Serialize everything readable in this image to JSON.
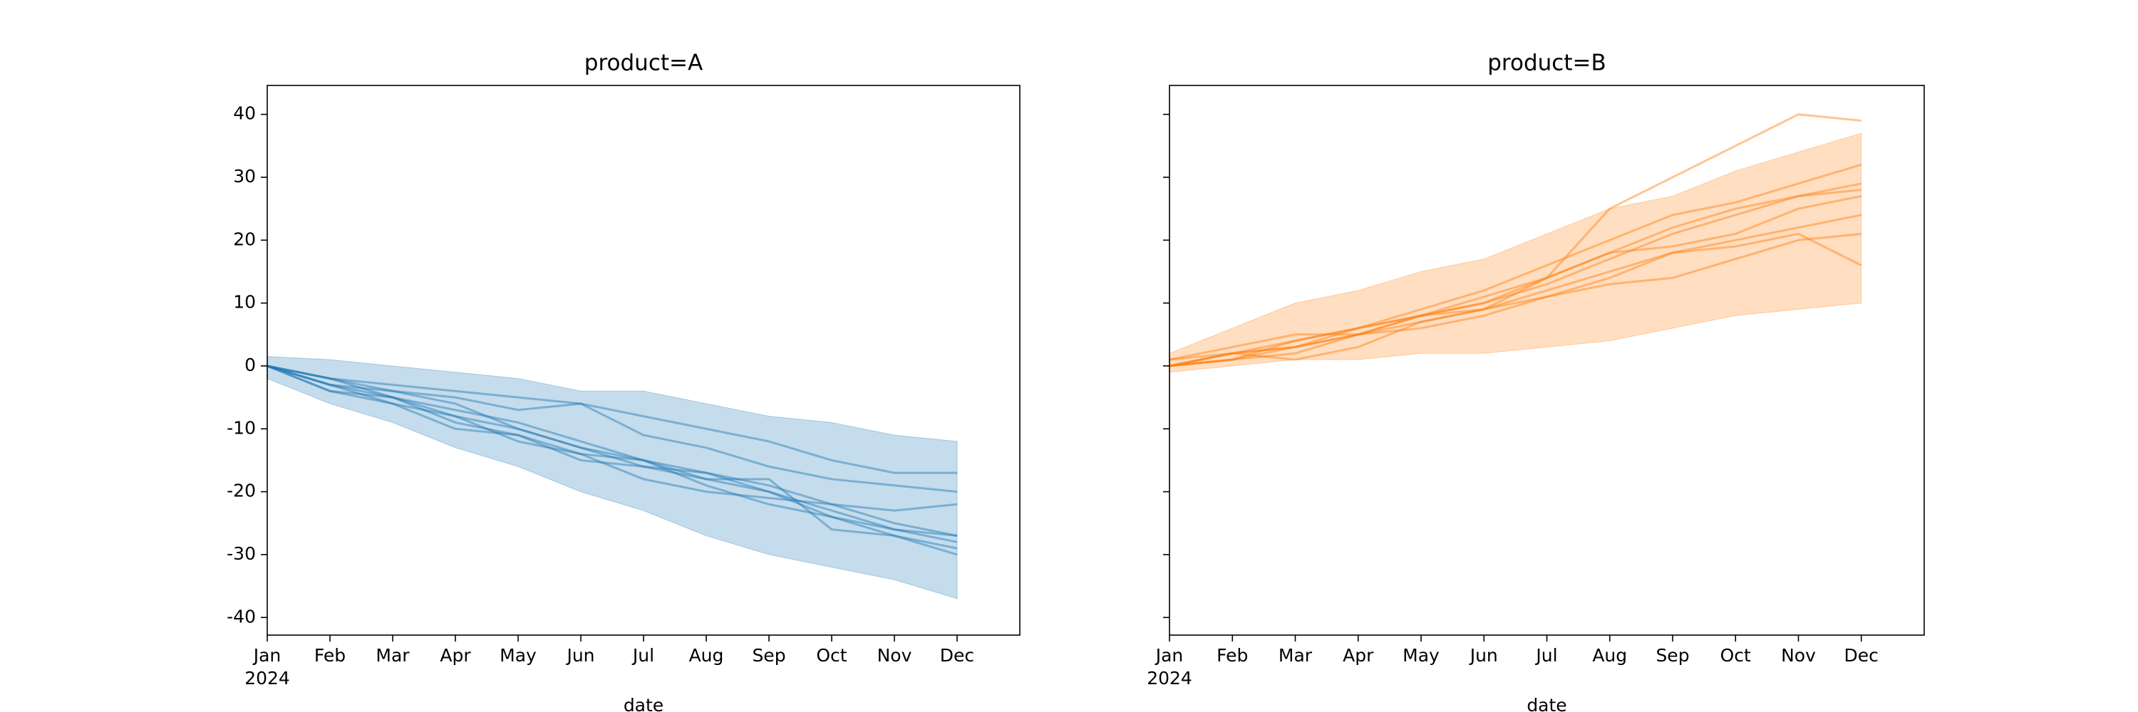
{
  "chart_data": [
    {
      "type": "line",
      "title": "product=A",
      "xlabel": "date",
      "year_label": "2024",
      "x": [
        "2024-01",
        "2024-02",
        "2024-03",
        "2024-04",
        "2024-05",
        "2024-06",
        "2024-07",
        "2024-08",
        "2024-09",
        "2024-10",
        "2024-11",
        "2024-12"
      ],
      "xlim": [
        "2024-01",
        "2025-01"
      ],
      "xticks": [
        {
          "value": "2024-01",
          "label": "Jan"
        },
        {
          "value": "2024-02",
          "label": "Feb"
        },
        {
          "value": "2024-03",
          "label": "Mar"
        },
        {
          "value": "2024-04",
          "label": "Apr"
        },
        {
          "value": "2024-05",
          "label": "May"
        },
        {
          "value": "2024-06",
          "label": "Jun"
        },
        {
          "value": "2024-07",
          "label": "Jul"
        },
        {
          "value": "2024-08",
          "label": "Aug"
        },
        {
          "value": "2024-09",
          "label": "Sep"
        },
        {
          "value": "2024-10",
          "label": "Oct"
        },
        {
          "value": "2024-11",
          "label": "Nov"
        },
        {
          "value": "2024-12",
          "label": "Dec"
        }
      ],
      "ylim": [
        -42.8,
        44.6
      ],
      "yticks": [
        -40,
        -30,
        -20,
        -10,
        0,
        10,
        20,
        30,
        40
      ],
      "show_ytick_labels": true,
      "band": {
        "color": "#1f77b4",
        "upper": [
          1.5,
          1,
          0,
          -1,
          -2,
          -4,
          -4,
          -6,
          -8,
          -9,
          -11,
          -12
        ],
        "lower": [
          -2,
          -6,
          -9,
          -13,
          -16,
          -20,
          -23,
          -27,
          -30,
          -32,
          -34,
          -37
        ]
      },
      "series": [
        {
          "color": "#1f77b4",
          "values": [
            0,
            -3,
            -5,
            -8,
            -10,
            -13,
            -15,
            -17,
            -19,
            -22,
            -25,
            -27
          ]
        },
        {
          "color": "#1f77b4",
          "values": [
            0,
            -2,
            -4,
            -5,
            -7,
            -6,
            -8,
            -10,
            -12,
            -15,
            -17,
            -17
          ]
        },
        {
          "color": "#1f77b4",
          "values": [
            0,
            -4,
            -5,
            -9,
            -11,
            -14,
            -15,
            -19,
            -22,
            -24,
            -26,
            -28
          ]
        },
        {
          "color": "#1f77b4",
          "values": [
            0,
            -3,
            -6,
            -8,
            -12,
            -14,
            -18,
            -20,
            -21,
            -22,
            -23,
            -22
          ]
        },
        {
          "color": "#1f77b4",
          "values": [
            0,
            -2,
            -5,
            -7,
            -9,
            -12,
            -15,
            -18,
            -18,
            -26,
            -27,
            -29
          ]
        },
        {
          "color": "#1f77b4",
          "values": [
            0,
            -3,
            -4,
            -6,
            -10,
            -13,
            -16,
            -17,
            -20,
            -24,
            -27,
            -30
          ]
        },
        {
          "color": "#1f77b4",
          "values": [
            0,
            -4,
            -6,
            -10,
            -11,
            -15,
            -16,
            -18,
            -20,
            -23,
            -26,
            -27
          ]
        },
        {
          "color": "#1f77b4",
          "values": [
            0,
            -2,
            -3,
            -4,
            -5,
            -6,
            -11,
            -13,
            -16,
            -18,
            -19,
            -20
          ]
        }
      ]
    },
    {
      "type": "line",
      "title": "product=B",
      "xlabel": "date",
      "year_label": "2024",
      "x": [
        "2024-01",
        "2024-02",
        "2024-03",
        "2024-04",
        "2024-05",
        "2024-06",
        "2024-07",
        "2024-08",
        "2024-09",
        "2024-10",
        "2024-11",
        "2024-12"
      ],
      "xlim": [
        "2024-01",
        "2025-01"
      ],
      "xticks": [
        {
          "value": "2024-01",
          "label": "Jan"
        },
        {
          "value": "2024-02",
          "label": "Feb"
        },
        {
          "value": "2024-03",
          "label": "Mar"
        },
        {
          "value": "2024-04",
          "label": "Apr"
        },
        {
          "value": "2024-05",
          "label": "May"
        },
        {
          "value": "2024-06",
          "label": "Jun"
        },
        {
          "value": "2024-07",
          "label": "Jul"
        },
        {
          "value": "2024-08",
          "label": "Aug"
        },
        {
          "value": "2024-09",
          "label": "Sep"
        },
        {
          "value": "2024-10",
          "label": "Oct"
        },
        {
          "value": "2024-11",
          "label": "Nov"
        },
        {
          "value": "2024-12",
          "label": "Dec"
        }
      ],
      "ylim": [
        -42.8,
        44.6
      ],
      "yticks": [
        -40,
        -30,
        -20,
        -10,
        0,
        10,
        20,
        30,
        40
      ],
      "show_ytick_labels": false,
      "band": {
        "color": "#ff7f0e",
        "upper": [
          2,
          6,
          10,
          12,
          15,
          17,
          21,
          25,
          27,
          31,
          34,
          37
        ],
        "lower": [
          -1,
          0,
          1,
          1,
          2,
          2,
          3,
          4,
          6,
          8,
          9,
          10
        ]
      },
      "series": [
        {
          "color": "#ff7f0e",
          "values": [
            0,
            1,
            2,
            5,
            8,
            10,
            14,
            25,
            30,
            35,
            40,
            39
          ]
        },
        {
          "color": "#ff7f0e",
          "values": [
            0,
            2,
            4,
            6,
            8,
            10,
            13,
            17,
            21,
            24,
            27,
            28
          ]
        },
        {
          "color": "#ff7f0e",
          "values": [
            1,
            3,
            5,
            5,
            7,
            9,
            11,
            14,
            18,
            20,
            22,
            24
          ]
        },
        {
          "color": "#ff7f0e",
          "values": [
            0,
            1,
            3,
            6,
            8,
            11,
            14,
            18,
            19,
            21,
            25,
            27
          ]
        },
        {
          "color": "#ff7f0e",
          "values": [
            0,
            2,
            3,
            5,
            6,
            8,
            11,
            13,
            14,
            17,
            20,
            21
          ]
        },
        {
          "color": "#ff7f0e",
          "values": [
            1,
            2,
            1,
            3,
            7,
            9,
            14,
            18,
            22,
            25,
            27,
            29
          ]
        },
        {
          "color": "#ff7f0e",
          "values": [
            0,
            1,
            4,
            6,
            9,
            12,
            16,
            20,
            24,
            26,
            29,
            32
          ]
        },
        {
          "color": "#ff7f0e",
          "values": [
            0,
            2,
            3,
            5,
            8,
            9,
            12,
            15,
            18,
            19,
            21,
            16
          ]
        }
      ]
    }
  ]
}
